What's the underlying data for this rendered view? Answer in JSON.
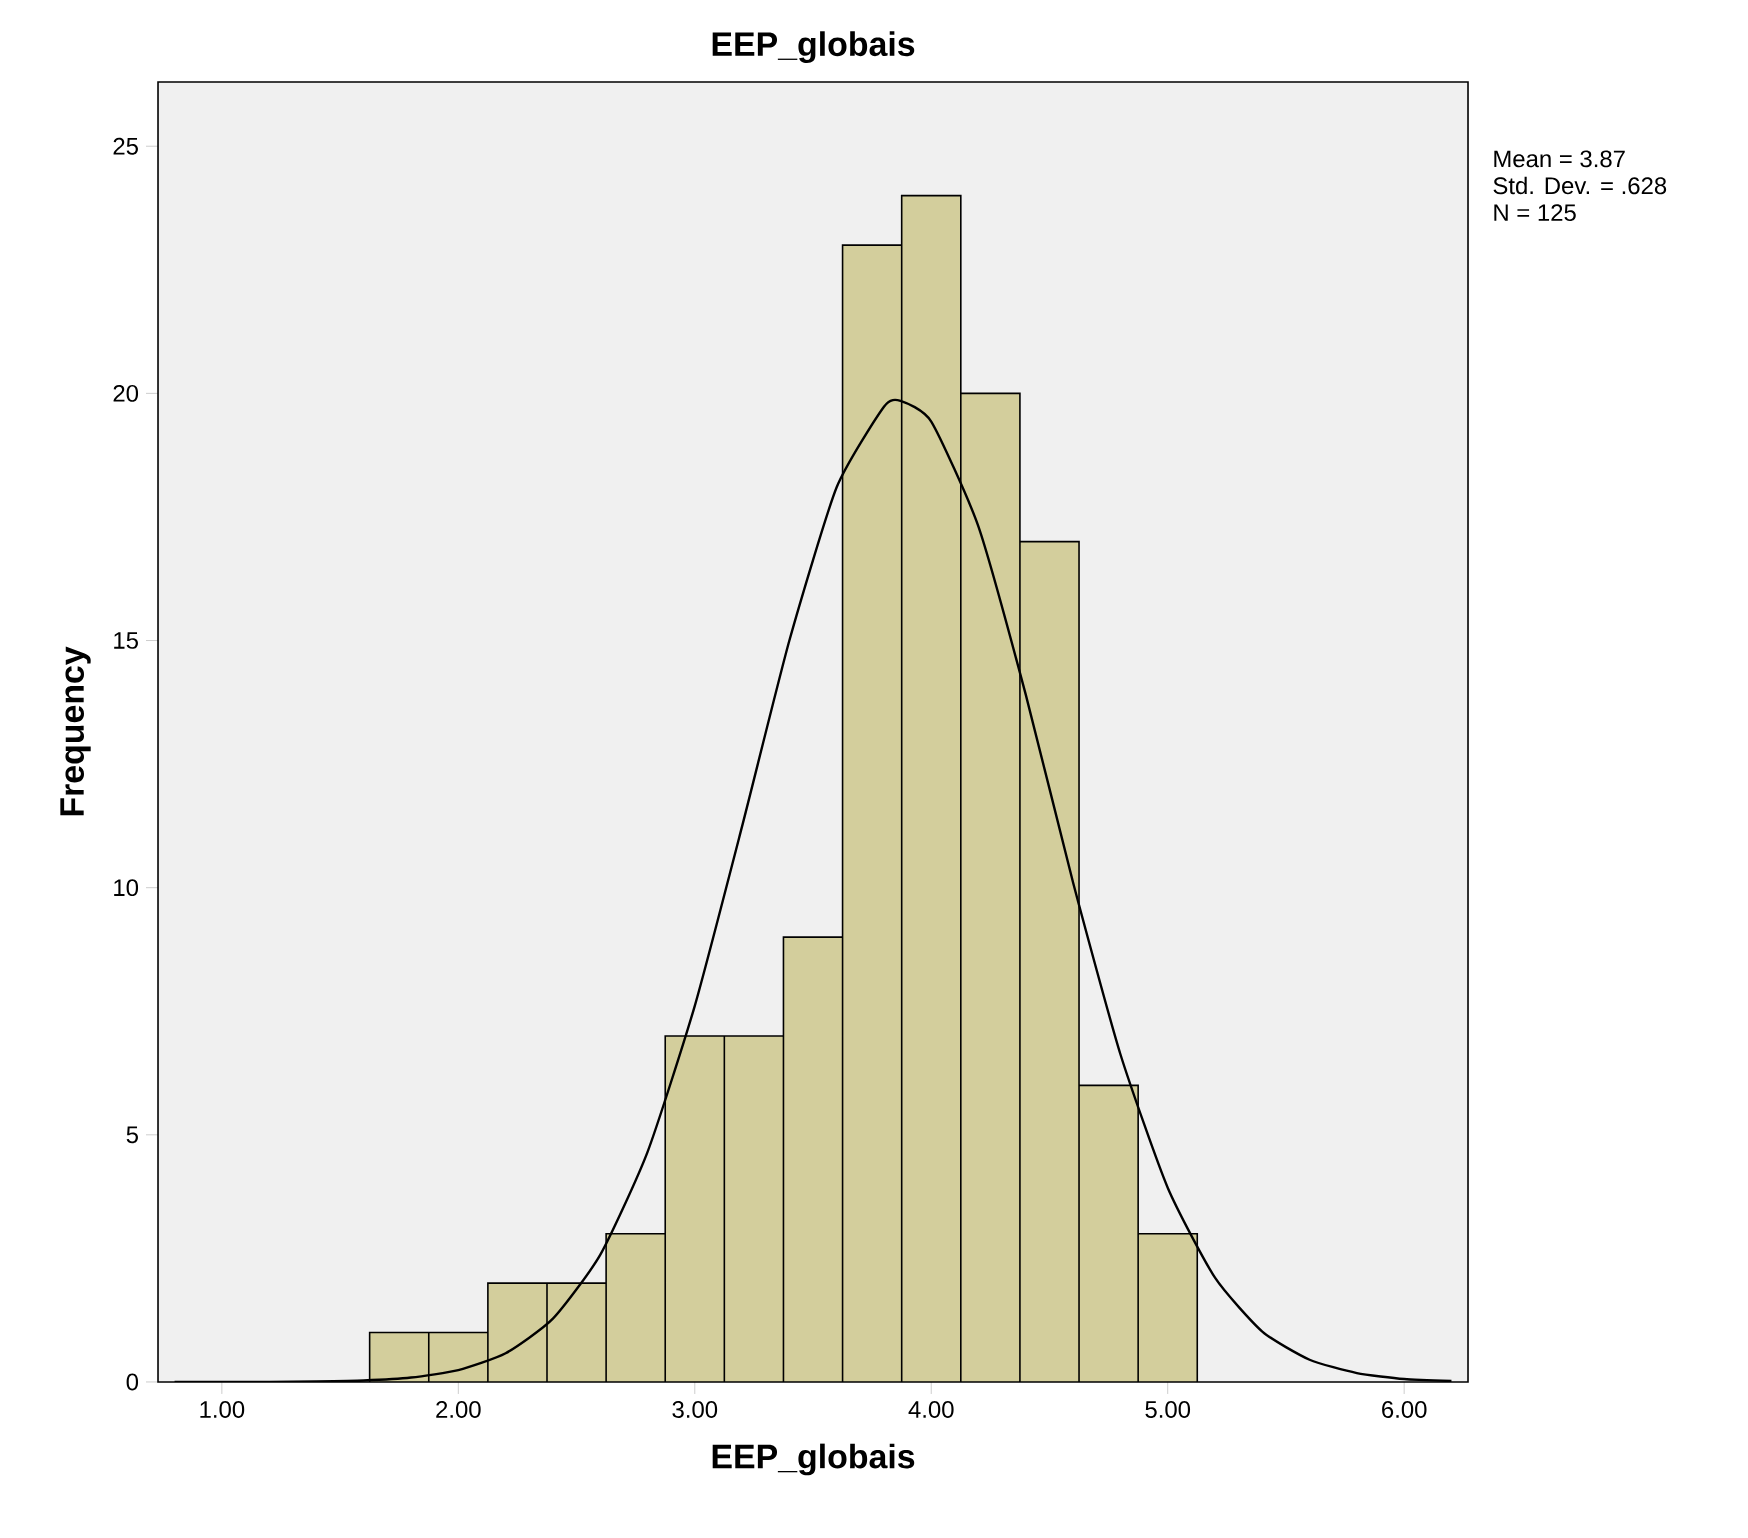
{
  "chart_data": {
    "type": "histogram",
    "title": "EEP_globais",
    "xlabel": "EEP_globais",
    "ylabel": "Frequency",
    "annotations": [
      "Mean = 3.87",
      "Std. Dev. = .628",
      "N = 125"
    ],
    "series": [
      {
        "color": "#d3ce9c",
        "bins": [
          1.625,
          1.875,
          2.125,
          2.375,
          2.625,
          2.875,
          3.125,
          3.375,
          3.625,
          3.875,
          4.125,
          4.375,
          4.625,
          4.875,
          5.125
        ],
        "values": [
          1,
          1,
          2,
          2,
          3,
          7,
          7,
          9,
          23,
          24,
          20,
          17,
          6,
          3
        ]
      },
      {
        "type": "line",
        "color": "#000000",
        "x": [
          0.8,
          1.0,
          1.2,
          1.4,
          1.6,
          1.8,
          2.0,
          2.2,
          2.4,
          2.6,
          2.8,
          3.0,
          3.2,
          3.4,
          3.6,
          3.8,
          3.87,
          4.0,
          4.2,
          4.4,
          4.6,
          4.8,
          5.0,
          5.2,
          5.4,
          5.6,
          5.8,
          6.0,
          6.2
        ],
        "values": [
          0,
          0,
          0,
          0.01,
          0.03,
          0.09,
          0.24,
          0.58,
          1.28,
          2.57,
          4.65,
          7.61,
          11.24,
          15.0,
          18.1,
          19.73,
          19.85,
          19.43,
          17.3,
          13.9,
          10.1,
          6.63,
          3.93,
          2.11,
          1.02,
          0.45,
          0.18,
          0.06,
          0.02
        ]
      }
    ],
    "xlim": [
      0.73,
      6.27
    ],
    "ylim": [
      0,
      26.3
    ],
    "xticks": [
      {
        "value": 1,
        "label": "1.00"
      },
      {
        "value": 2,
        "label": "2.00"
      },
      {
        "value": 3,
        "label": "3.00"
      },
      {
        "value": 4,
        "label": "4.00"
      },
      {
        "value": 5,
        "label": "5.00"
      },
      {
        "value": 6,
        "label": "6.00"
      }
    ],
    "yticks": [
      0,
      5,
      10,
      15,
      20,
      25
    ],
    "grid": false
  }
}
